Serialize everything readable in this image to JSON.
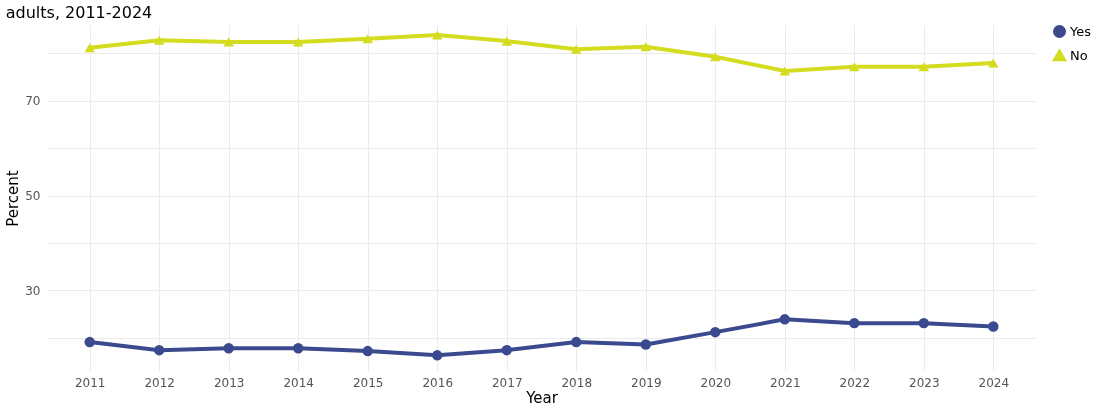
{
  "chart_data": {
    "type": "line",
    "title": "adults, 2011-2024",
    "xlabel": "Year",
    "ylabel": "Percent",
    "categories": [
      "2011",
      "2012",
      "2013",
      "2014",
      "2015",
      "2016",
      "2017",
      "2018",
      "2019",
      "2020",
      "2021",
      "2022",
      "2023",
      "2024"
    ],
    "series": [
      {
        "name": "Yes",
        "color": "#3b4a8f",
        "marker": "circle",
        "values": [
          19.1,
          17.4,
          17.8,
          17.8,
          17.2,
          16.3,
          17.4,
          19.1,
          18.6,
          21.2,
          23.9,
          23.1,
          23.1,
          22.4
        ]
      },
      {
        "name": "No",
        "color": "#d4dc1f",
        "marker": "triangle",
        "values": [
          81.2,
          82.8,
          82.4,
          82.4,
          83.1,
          83.9,
          82.6,
          80.9,
          81.4,
          79.3,
          76.3,
          77.2,
          77.2,
          78.0
        ]
      }
    ],
    "ylim": [
      13,
      86
    ],
    "yticks": [
      {
        "value": 20,
        "label": null
      },
      30,
      {
        "value": 40,
        "label": null
      },
      50,
      {
        "value": 60,
        "label": null
      },
      70,
      {
        "value": 80,
        "label": null
      }
    ],
    "grid": true,
    "legend": "right"
  }
}
